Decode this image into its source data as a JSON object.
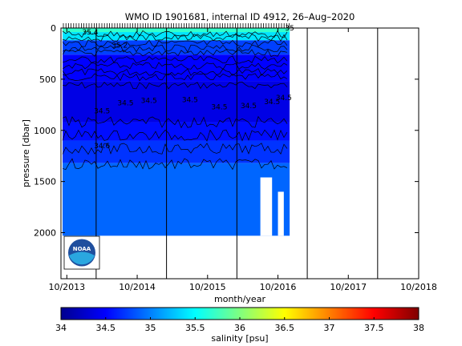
{
  "chart_data": {
    "type": "heatmap",
    "title": "WMO ID 1901681, internal ID 4912, 26–Aug–2020",
    "xlabel": "month/year",
    "ylabel": "pressure [dbar]",
    "x_ticks": [
      "10/2013",
      "10/2014",
      "10/2015",
      "10/2016",
      "10/2017",
      "10/2018"
    ],
    "y_ticks": [
      0,
      500,
      1000,
      1500,
      2000
    ],
    "ylim": [
      2450,
      0
    ],
    "xlim": [
      "09/2013",
      "10/2018"
    ],
    "colorbar": {
      "label": "salinity [psu]",
      "range": [
        34,
        38
      ],
      "ticks": [
        "34",
        "34.5",
        "35",
        "35.5",
        "36",
        "36.5",
        "37",
        "37.5",
        "38"
      ]
    },
    "vertical_lines": [
      "03/2014",
      "03/2015",
      "03/2016",
      "03/2017",
      "03/2018"
    ],
    "depth_bands": [
      {
        "top": 0,
        "bottom": 120,
        "salinity": 35.4
      },
      {
        "top": 120,
        "bottom": 260,
        "salinity": 34.75
      },
      {
        "top": 260,
        "bottom": 520,
        "salinity": 34.5
      },
      {
        "top": 520,
        "bottom": 920,
        "salinity": 34.4
      },
      {
        "top": 920,
        "bottom": 1100,
        "salinity": 34.55
      },
      {
        "top": 1100,
        "bottom": 1320,
        "salinity": 34.7
      },
      {
        "top": 1320,
        "bottom": 2030,
        "salinity": 34.9
      }
    ],
    "contour_levels": [
      34.5,
      34.6,
      34.7,
      34.8,
      34.9,
      35.0,
      35.1,
      35.2,
      35.3,
      35.4
    ],
    "contour_labels": [
      {
        "text": "35.4",
        "x": "02/2014",
        "p": 40
      },
      {
        "text": "35.2",
        "x": "07/2014",
        "p": 170
      },
      {
        "text": "34.5",
        "x": "04/2014",
        "p": 810
      },
      {
        "text": "34.5",
        "x": "08/2014",
        "p": 730
      },
      {
        "text": "34.5",
        "x": "12/2014",
        "p": 710
      },
      {
        "text": "34.5",
        "x": "07/2015",
        "p": 700
      },
      {
        "text": "34.5",
        "x": "12/2015",
        "p": 770
      },
      {
        "text": "34.5",
        "x": "05/2016",
        "p": 760
      },
      {
        "text": "34.5",
        "x": "09/2016",
        "p": 720
      },
      {
        "text": "34.5",
        "x": "11/2016",
        "p": 680
      },
      {
        "text": "34.6",
        "x": "04/2014",
        "p": 1150
      },
      {
        "text": "35",
        "x": "12/2016",
        "p": 0
      }
    ],
    "profile_end": "12/2016",
    "data_gaps": [
      {
        "from": "07/2016",
        "to": "09/2016",
        "top": 1460
      },
      {
        "from": "10/2016",
        "to": "11/2016",
        "top": 1600
      }
    ],
    "logo": "NOAA"
  },
  "colors": {
    "background": "#ffffff",
    "axis": "#000000",
    "colormap": "jet"
  }
}
